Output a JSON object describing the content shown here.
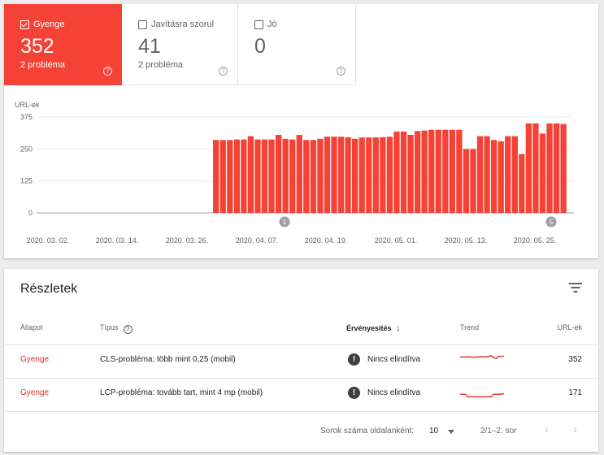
{
  "tiles": [
    {
      "label": "Gyenge",
      "count": "352",
      "sub": "2 probléma",
      "selected": true,
      "color": "#f44336"
    },
    {
      "label": "Javításra szorul",
      "count": "41",
      "sub": "2 probléma",
      "selected": false
    },
    {
      "label": "Jó",
      "count": "0",
      "sub": "",
      "selected": false
    }
  ],
  "chart_data": {
    "type": "bar",
    "ylabel": "URL-ek",
    "y_ticks": [
      "375",
      "250",
      "125",
      "0"
    ],
    "ylim": [
      0,
      375
    ],
    "color": "#f44336",
    "x_tick_labels": [
      "2020. 03. 02.",
      "2020. 03. 14.",
      "2020. 03. 26.",
      "2020. 04. 07.",
      "2020. 04. 19.",
      "2020. 05. 01.",
      "2020. 05. 13.",
      "2020. 05. 25."
    ],
    "annotations": [
      {
        "label": "1",
        "date": "2020. 04. 07."
      },
      {
        "label": "5",
        "date": "2020. 05. 25."
      }
    ],
    "values": [
      285,
      285,
      285,
      287,
      287,
      300,
      287,
      287,
      287,
      305,
      290,
      287,
      305,
      285,
      285,
      290,
      298,
      298,
      298,
      296,
      290,
      295,
      295,
      295,
      296,
      298,
      318,
      318,
      305,
      320,
      322,
      325,
      325,
      325,
      325,
      325,
      250,
      250,
      300,
      300,
      285,
      280,
      300,
      300,
      230,
      350,
      350,
      310,
      350,
      350,
      348
    ]
  },
  "details": {
    "title": "Részletek",
    "headers": {
      "status": "Állapot",
      "type": "Típus",
      "validation": "Érvényesítés",
      "trend": "Trend",
      "urls": "URL-ek"
    },
    "rows": [
      {
        "status": "Gyenge",
        "type": "CLS-probléma: több mint 0,25 (mobil)",
        "validation": "Nincs elindítva",
        "urls": "352",
        "trend": [
          0.6,
          0.6,
          0.6,
          0.62,
          0.6,
          0.58,
          0.6,
          0.6,
          0.62,
          0.6,
          0.6,
          0.65,
          0.7,
          0.55,
          0.5,
          0.65,
          0.65,
          0.66
        ]
      },
      {
        "status": "Gyenge",
        "type": "LCP-probléma: tovább tart, mint 4 mp (mobil)",
        "validation": "Nincs elindítva",
        "urls": "171",
        "trend": [
          0.3,
          0.3,
          0.3,
          0.1,
          0.1,
          0.1,
          0.1,
          0.1,
          0.1,
          0.1,
          0.1,
          0.1,
          0.1,
          0.3,
          0.3,
          0.3,
          0.3,
          0.35
        ]
      }
    ],
    "footer": {
      "rows_per_page_label": "Sorok száma oldalanként:",
      "rows_per_page_value": "10",
      "range": "2/1–2. sor",
      "prev": "‹",
      "next": "›"
    }
  }
}
